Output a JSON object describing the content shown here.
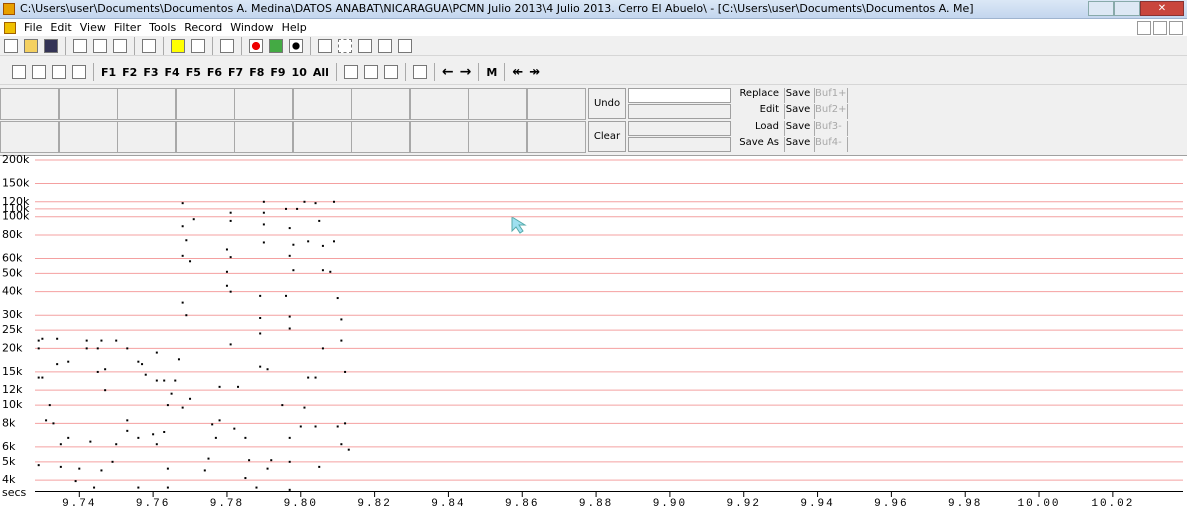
{
  "window": {
    "title": "C:\\Users\\user\\Documents\\Documentos A. Medina\\DATOS ANABAT\\NICARAGUA\\PCMN Julio 2013\\4 Julio 2013. Cerro El Abuelo\\ - [C:\\Users\\user\\Documents\\Documentos A. Me]",
    "menu": [
      "File",
      "Edit",
      "View",
      "Filter",
      "Tools",
      "Record",
      "Window",
      "Help"
    ],
    "keys": [
      "F1",
      "F2",
      "F3",
      "F4",
      "F5",
      "F6",
      "F7",
      "F8",
      "F9",
      "10",
      "All"
    ],
    "m_key": "M"
  },
  "panel": {
    "undo": "Undo",
    "clear": "Clear",
    "file_buttons": [
      "Replace",
      "Edit",
      "Load",
      "Save As"
    ],
    "save_buttons": [
      "Save",
      "Save",
      "Save",
      "Save"
    ],
    "buffers": [
      "Buf1+",
      "Buf2+",
      "Buf3-",
      "Buf4-"
    ]
  },
  "chart_data": {
    "type": "scatter",
    "color": "#000000",
    "grid_color": "#f4a0a0",
    "log_y": true,
    "grid": true,
    "xlabel": "secs",
    "xlim": [
      9.728,
      10.039
    ],
    "ylim": [
      3500,
      210000
    ],
    "yticks": [
      {
        "value": 200000,
        "label": "200k"
      },
      {
        "value": 150000,
        "label": "150k"
      },
      {
        "value": 120000,
        "label": "120k"
      },
      {
        "value": 110000,
        "label": "110k"
      },
      {
        "value": 100000,
        "label": "100k"
      },
      {
        "value": 80000,
        "label": "80k"
      },
      {
        "value": 60000,
        "label": "60k"
      },
      {
        "value": 50000,
        "label": "50k"
      },
      {
        "value": 40000,
        "label": "40k"
      },
      {
        "value": 30000,
        "label": "30k"
      },
      {
        "value": 25000,
        "label": "25k"
      },
      {
        "value": 20000,
        "label": "20k"
      },
      {
        "value": 15000,
        "label": "15k"
      },
      {
        "value": 12000,
        "label": "12k"
      },
      {
        "value": 10000,
        "label": "10k"
      },
      {
        "value": 8000,
        "label": "8k"
      },
      {
        "value": 6000,
        "label": "6k"
      },
      {
        "value": 5000,
        "label": "5k"
      },
      {
        "value": 4000,
        "label": "4k"
      }
    ],
    "xticks": [
      9.74,
      9.76,
      9.78,
      {
        "value": 9.8,
        "label": "9.80"
      },
      9.82,
      9.84,
      9.86,
      9.88,
      {
        "value": 9.9,
        "label": "9.90"
      },
      9.92,
      9.94,
      9.96,
      9.98,
      {
        "value": 10,
        "label": "10.00"
      },
      10.02
    ],
    "x": [
      9.729,
      9.73,
      9.734,
      9.729,
      9.73,
      9.729,
      9.734,
      9.737,
      9.742,
      9.742,
      9.745,
      9.746,
      9.75,
      9.747,
      9.745,
      9.747,
      9.753,
      9.756,
      9.757,
      9.758,
      9.761,
      9.761,
      9.763,
      9.766,
      9.767,
      9.765,
      9.764,
      9.768,
      9.77,
      9.732,
      9.731,
      9.733,
      9.737,
      9.735,
      9.743,
      9.753,
      9.753,
      9.756,
      9.76,
      9.761,
      9.763,
      9.749,
      9.75,
      9.729,
      9.735,
      9.74,
      9.746,
      9.764,
      9.739,
      9.744,
      9.756,
      9.764,
      9.774,
      9.768,
      9.771,
      9.768,
      9.769,
      9.768,
      9.77,
      9.781,
      9.781,
      9.78,
      9.781,
      9.78,
      9.78,
      9.781,
      9.768,
      9.769,
      9.781,
      9.776,
      9.777,
      9.778,
      9.782,
      9.783,
      9.778,
      9.775,
      9.785,
      9.786,
      9.789,
      9.791,
      9.79,
      9.79,
      9.79,
      9.79,
      9.789,
      9.789,
      9.789,
      9.796,
      9.797,
      9.798,
      9.797,
      9.798,
      9.796,
      9.797,
      9.797,
      9.799,
      9.801,
      9.802,
      9.804,
      9.805,
      9.806,
      9.806,
      9.808,
      9.809,
      9.809,
      9.81,
      9.811,
      9.811,
      9.806,
      9.802,
      9.804,
      9.812,
      9.795,
      9.801,
      9.8,
      9.804,
      9.81,
      9.812,
      9.797,
      9.811,
      9.813,
      9.792,
      9.797,
      9.791,
      9.805,
      9.788,
      9.797,
      9.785
    ],
    "y": [
      22000,
      22500,
      22500,
      20000,
      14000,
      14000,
      16500,
      17000,
      22000,
      20000,
      20000,
      22000,
      22000,
      15500,
      15000,
      12000,
      20000,
      17000,
      16500,
      14500,
      19000,
      13500,
      13500,
      13500,
      17500,
      11500,
      10000,
      9700,
      10800,
      10000,
      8300,
      8000,
      6700,
      6200,
      6400,
      8300,
      7300,
      6700,
      7000,
      6200,
      7200,
      5000,
      6200,
      4800,
      4700,
      4600,
      4500,
      4600,
      3950,
      3650,
      3650,
      3650,
      4500,
      118000,
      97000,
      89000,
      75000,
      62000,
      58000,
      105000,
      95000,
      67000,
      61000,
      51000,
      43000,
      40000,
      35000,
      30000,
      21000,
      7900,
      6700,
      8300,
      7500,
      12500,
      12500,
      5200,
      6700,
      5100,
      16000,
      15500,
      120000,
      105000,
      91000,
      73000,
      38000,
      29000,
      24000,
      110000,
      87000,
      71000,
      62000,
      52000,
      38000,
      29500,
      25500,
      110000,
      120000,
      74000,
      118000,
      95000,
      70000,
      52000,
      51000,
      120000,
      74000,
      37000,
      28500,
      22000,
      20000,
      14000,
      14000,
      15000,
      10000,
      9700,
      7700,
      7700,
      7700,
      8000,
      6700,
      6200,
      5800,
      5100,
      5000,
      4600,
      4700,
      3650,
      3550,
      4100
    ]
  }
}
